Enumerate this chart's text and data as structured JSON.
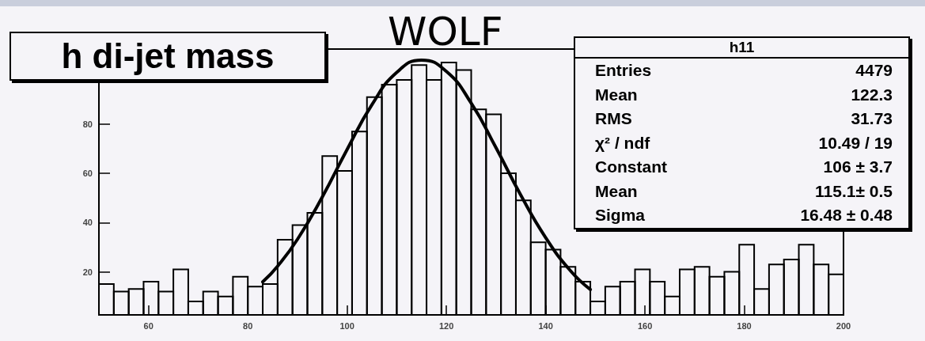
{
  "chart_data": {
    "type": "histogram",
    "title": "h di-jet mass",
    "bins": [
      50,
      53,
      56,
      59,
      62,
      65,
      68,
      71,
      74,
      77,
      80,
      83,
      86,
      89,
      92,
      95,
      98,
      101,
      104,
      107,
      110,
      113,
      116,
      119,
      122,
      125,
      128,
      131,
      134,
      137,
      140,
      143,
      146,
      149,
      152,
      155,
      158,
      161,
      164,
      167,
      170,
      173,
      176,
      179,
      182,
      185,
      188,
      191,
      194,
      197,
      200
    ],
    "values": [
      15,
      12,
      13,
      16,
      12,
      21,
      8,
      12,
      10,
      18,
      14,
      15,
      33,
      39,
      44,
      67,
      61,
      77,
      91,
      96,
      98,
      104,
      98,
      105,
      102,
      86,
      84,
      60,
      49,
      32,
      29,
      22,
      16,
      8,
      14,
      16,
      21,
      16,
      10,
      21,
      22,
      18,
      20,
      31,
      13,
      23,
      25,
      31,
      23,
      19
    ],
    "series": [
      {
        "type": "line",
        "color": "#000000",
        "x": [
          83,
          86,
          90,
          95,
          100,
          105,
          110,
          115,
          120,
          125,
          130,
          135,
          140,
          145,
          149
        ],
        "values": [
          15.9,
          22.3,
          33.2,
          50.4,
          69.7,
          87.9,
          101.0,
          106.0,
          101.4,
          88.5,
          70.4,
          51.1,
          33.9,
          20.4,
          12.8
        ]
      }
    ],
    "color": "#000000",
    "xlim": [
      50,
      200
    ],
    "xticks": [
      60,
      80,
      100,
      120,
      140,
      160,
      180,
      200
    ],
    "ylim": [
      2.5,
      110.5
    ],
    "yticks": [
      20,
      40,
      60,
      80
    ],
    "grid": false,
    "legend": false,
    "marker": "none",
    "line_style": "solid",
    "annotations": [
      "WOLF",
      "h11",
      "Entries",
      "4479",
      "Mean",
      "122.3",
      "RMS",
      "31.73",
      "χ² / ndf",
      "10.49 / 19",
      "Constant",
      "106 ± 3.7",
      "Mean",
      "115.1± 0.5",
      "Sigma",
      "16.48 ± 0.48"
    ]
  }
}
